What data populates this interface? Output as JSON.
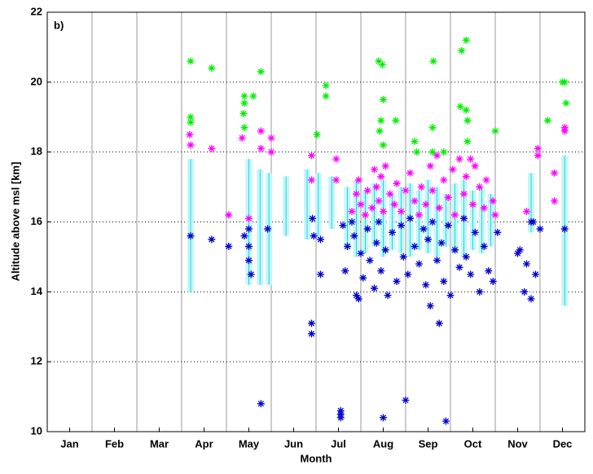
{
  "chart_data": {
    "type": "scatter",
    "annotation": "b)",
    "ylabel": "Altitude above msl [km]",
    "xlabel": "Month",
    "xlim": [
      0.5,
      12.5
    ],
    "ylim": [
      10,
      22
    ],
    "yticks": [
      10,
      12,
      14,
      16,
      18,
      20,
      22
    ],
    "xticks": [
      {
        "value": 1,
        "label": "Jan"
      },
      {
        "value": 2,
        "label": "Feb"
      },
      {
        "value": 3,
        "label": "Mar"
      },
      {
        "value": 4,
        "label": "Apr"
      },
      {
        "value": 5,
        "label": "May"
      },
      {
        "value": 6,
        "label": "Jun"
      },
      {
        "value": 7,
        "label": "Jul"
      },
      {
        "value": 8,
        "label": "Aug"
      },
      {
        "value": 9,
        "label": "Sep"
      },
      {
        "value": 10,
        "label": "Oct"
      },
      {
        "value": 11,
        "label": "Nov"
      },
      {
        "value": 12,
        "label": "Dec"
      }
    ],
    "grid": true,
    "ranges": {
      "color": "#c8f4f8",
      "x": [
        3.7,
        5.0,
        5.25,
        5.45,
        5.83,
        6.3,
        6.55,
        6.85,
        7.2,
        7.4,
        7.6,
        7.8,
        8.0,
        8.2,
        8.4,
        8.6,
        8.8,
        9.0,
        9.2,
        9.4,
        9.6,
        9.8,
        10.0,
        10.2,
        10.4,
        11.3,
        12.05
      ],
      "low": [
        14.0,
        14.2,
        14.2,
        14.2,
        15.6,
        15.5,
        15.6,
        15.8,
        15.2,
        15.0,
        15.1,
        15.3,
        15.0,
        15.2,
        15.1,
        15.0,
        15.2,
        15.1,
        15.0,
        15.3,
        15.1,
        15.0,
        15.2,
        15.1,
        15.3,
        15.7,
        13.6
      ],
      "high": [
        17.8,
        17.8,
        17.5,
        17.4,
        17.3,
        17.5,
        17.4,
        17.3,
        17.0,
        17.2,
        16.9,
        17.1,
        17.2,
        16.8,
        17.0,
        17.1,
        16.9,
        17.2,
        17.0,
        16.8,
        17.1,
        17.2,
        16.9,
        17.0,
        16.8,
        17.4,
        17.9
      ]
    },
    "series": [
      {
        "color": "#00ee00",
        "x": [
          3.7,
          3.7,
          3.7,
          4.17,
          4.9,
          4.9,
          4.88,
          4.9,
          5.1,
          5.27,
          6.72,
          6.72,
          6.52,
          7.9,
          7.98,
          8.0,
          7.95,
          7.92,
          8.0,
          8.28,
          8.7,
          8.75,
          9.12,
          9.1,
          9.1,
          9.35,
          9.75,
          9.85,
          9.72,
          9.85,
          9.88,
          9.88,
          10.5,
          11.67,
          12.0,
          12.05,
          12.08
        ],
        "values": [
          20.6,
          19.0,
          18.85,
          20.4,
          19.6,
          19.4,
          19.1,
          18.7,
          19.6,
          20.3,
          19.9,
          19.6,
          18.5,
          20.6,
          20.5,
          19.5,
          18.9,
          18.6,
          18.2,
          18.9,
          18.3,
          18.0,
          20.6,
          18.7,
          18.0,
          18.0,
          20.9,
          21.2,
          19.3,
          19.2,
          18.9,
          18.3,
          18.6,
          18.9,
          20.0,
          20.0,
          19.4
        ]
      },
      {
        "color": "#ff00ff",
        "x": [
          3.68,
          3.7,
          4.17,
          4.85,
          4.55,
          5.0,
          5.27,
          5.27,
          5.5,
          5.5,
          6.4,
          6.4,
          6.95,
          6.95,
          7.3,
          7.4,
          7.45,
          7.5,
          7.6,
          7.65,
          7.75,
          7.8,
          7.85,
          7.9,
          7.95,
          8.0,
          8.05,
          8.15,
          8.25,
          8.3,
          8.4,
          8.5,
          8.6,
          8.7,
          8.8,
          8.85,
          8.95,
          9.05,
          9.1,
          9.2,
          9.25,
          9.35,
          9.45,
          9.55,
          9.6,
          9.7,
          9.8,
          9.85,
          9.95,
          10.0,
          10.05,
          10.15,
          10.25,
          10.3,
          10.45,
          10.5,
          11.2,
          11.45,
          11.45,
          11.82,
          11.82,
          12.05,
          12.05
        ],
        "values": [
          18.5,
          18.2,
          18.1,
          18.4,
          16.2,
          16.1,
          18.6,
          18.1,
          18.4,
          18.0,
          17.9,
          17.2,
          17.8,
          17.2,
          16.3,
          16.8,
          17.2,
          16.5,
          16.2,
          16.9,
          16.4,
          17.5,
          17.0,
          16.6,
          17.3,
          16.3,
          17.6,
          16.8,
          16.5,
          17.1,
          16.3,
          16.9,
          17.4,
          16.6,
          16.2,
          17.0,
          16.5,
          17.6,
          16.9,
          17.9,
          16.4,
          17.2,
          16.7,
          17.5,
          16.2,
          17.8,
          16.8,
          17.3,
          17.8,
          16.5,
          17.6,
          17.0,
          16.4,
          17.2,
          16.6,
          16.2,
          16.3,
          18.1,
          17.9,
          17.4,
          16.6,
          18.7,
          18.6
        ]
      },
      {
        "color": "#0000cc",
        "x": [
          3.7,
          4.17,
          4.55,
          4.9,
          5.0,
          5.0,
          5.0,
          5.05,
          5.27,
          5.42,
          6.4,
          6.4,
          6.42,
          6.45,
          6.6,
          6.6,
          7.05,
          7.05,
          7.05,
          8.0,
          8.5,
          9.4,
          9.25,
          7.1,
          7.15,
          7.2,
          7.3,
          7.35,
          7.4,
          7.45,
          7.5,
          7.55,
          7.65,
          7.7,
          7.8,
          7.85,
          7.9,
          7.95,
          8.05,
          8.1,
          8.2,
          8.3,
          8.4,
          8.45,
          8.55,
          8.6,
          8.7,
          8.8,
          8.9,
          8.95,
          9.0,
          9.05,
          9.1,
          9.2,
          9.3,
          9.35,
          9.45,
          9.5,
          9.6,
          9.7,
          9.8,
          9.85,
          9.95,
          10.05,
          10.15,
          10.25,
          10.35,
          10.55,
          10.45,
          11.0,
          11.05,
          11.15,
          11.2,
          11.3,
          11.4,
          11.3,
          11.35,
          11.5,
          12.05
        ],
        "values": [
          15.6,
          15.5,
          15.3,
          15.6,
          15.8,
          15.3,
          14.9,
          14.5,
          10.8,
          15.8,
          13.1,
          12.8,
          16.1,
          15.6,
          15.5,
          14.5,
          10.5,
          10.4,
          10.6,
          10.4,
          10.9,
          10.3,
          13.1,
          15.9,
          14.6,
          15.3,
          16.0,
          15.6,
          13.9,
          13.8,
          15.1,
          14.4,
          15.8,
          14.9,
          14.1,
          15.4,
          16.0,
          14.6,
          15.2,
          13.9,
          15.7,
          14.3,
          15.9,
          15.0,
          14.5,
          16.1,
          15.3,
          14.8,
          15.8,
          14.2,
          15.5,
          13.6,
          16.0,
          14.9,
          15.4,
          14.3,
          15.9,
          13.9,
          15.2,
          14.7,
          16.1,
          15.0,
          14.5,
          15.7,
          14.0,
          15.3,
          14.6,
          15.7,
          14.3,
          15.1,
          15.2,
          14.0,
          14.8,
          16.0,
          14.5,
          13.8,
          16.0,
          15.8,
          15.8
        ]
      }
    ]
  }
}
